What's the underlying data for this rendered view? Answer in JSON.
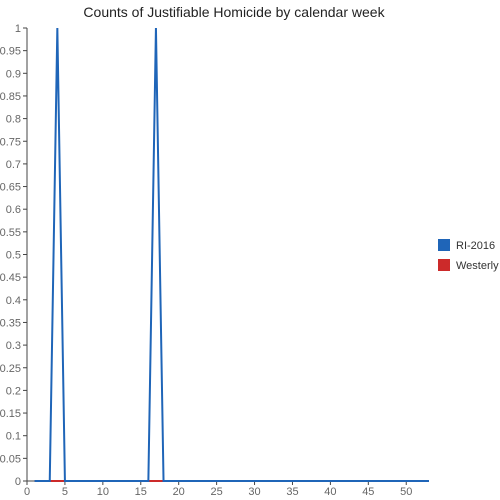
{
  "chart_data": {
    "type": "line",
    "title": "Counts of Justifiable Homicide by calendar week",
    "xlabel": "",
    "ylabel": "",
    "xlim": [
      0,
      53
    ],
    "ylim": [
      0,
      1
    ],
    "x_ticks": [
      "0",
      "5",
      "10",
      "15",
      "20",
      "25",
      "30",
      "35",
      "40",
      "45",
      "50"
    ],
    "y_ticks": [
      "0",
      "0.05",
      "0.1",
      "0.15",
      "0.2",
      "0.25",
      "0.3",
      "0.35",
      "0.4",
      "0.45",
      "0.5",
      "0.55",
      "0.6",
      "0.65",
      "0.7",
      "0.75",
      "0.8",
      "0.85",
      "0.9",
      "0.95",
      "1"
    ],
    "grid": false,
    "legend_position": "right",
    "series": [
      {
        "name": "RI-2016",
        "color": "#1f65b8",
        "x": [
          1,
          2,
          3,
          4,
          5,
          6,
          7,
          8,
          9,
          10,
          11,
          12,
          13,
          14,
          15,
          16,
          17,
          18,
          19,
          20,
          21,
          22,
          23,
          24,
          25,
          26,
          27,
          28,
          29,
          30,
          31,
          32,
          33,
          34,
          35,
          36,
          37,
          38,
          39,
          40,
          41,
          42,
          43,
          44,
          45,
          46,
          47,
          48,
          49,
          50,
          51,
          52,
          53
        ],
        "y": [
          0,
          0,
          0,
          1,
          0,
          0,
          0,
          0,
          0,
          0,
          0,
          0,
          0,
          0,
          0,
          0,
          1,
          0,
          0,
          0,
          0,
          0,
          0,
          0,
          0,
          0,
          0,
          0,
          0,
          0,
          0,
          0,
          0,
          0,
          0,
          0,
          0,
          0,
          0,
          0,
          0,
          0,
          0,
          0,
          0,
          0,
          0,
          0,
          0,
          0,
          0,
          0,
          0
        ]
      },
      {
        "name": "Westerly",
        "color": "#cc2a2a",
        "x": [
          1,
          2,
          3,
          4,
          5,
          6,
          7,
          8,
          9,
          10,
          11,
          12,
          13,
          14,
          15,
          16,
          17,
          18,
          19,
          20,
          21,
          22,
          23,
          24,
          25,
          26,
          27,
          28,
          29,
          30,
          31,
          32,
          33,
          34,
          35,
          36,
          37,
          38,
          39,
          40,
          41,
          42,
          43,
          44,
          45,
          46,
          47,
          48,
          49,
          50,
          51,
          52,
          53
        ],
        "y": [
          0,
          0,
          0,
          0,
          0,
          0,
          0,
          0,
          0,
          0,
          0,
          0,
          0,
          0,
          0,
          0,
          0,
          0,
          0,
          0,
          0,
          0,
          0,
          0,
          0,
          0,
          0,
          0,
          0,
          0,
          0,
          0,
          0,
          0,
          0,
          0,
          0,
          0,
          0,
          0,
          0,
          0,
          0,
          0,
          0,
          0,
          0,
          0,
          0,
          0,
          0,
          0,
          0
        ]
      }
    ]
  }
}
